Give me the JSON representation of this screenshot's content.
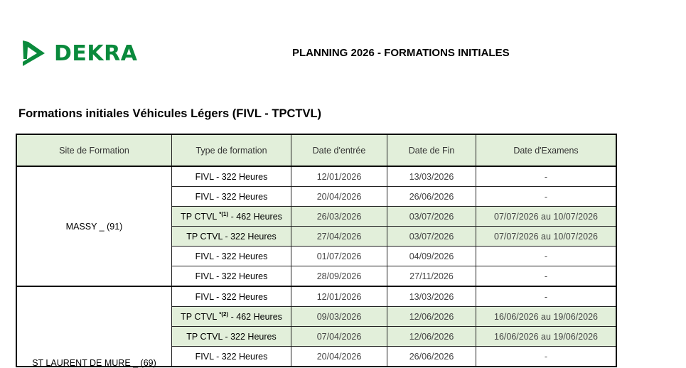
{
  "logo": {
    "text": "DEKRA",
    "color": "#0a8a3c"
  },
  "title": "PLANNING 2026 - FORMATIONS INITIALES",
  "subtitle": "Formations initiales Véhicules Légers  (FIVL - TPCTVL)",
  "table": {
    "headers": [
      "Site de Formation",
      "Type de formation",
      "Date d'entrée",
      "Date de Fin",
      "Date d'Examens"
    ],
    "highlight_color": "#e2efda",
    "groups": [
      {
        "site": "MASSY _ (91)",
        "rows": [
          {
            "type": "FIVL - 322 Heures",
            "sup": "",
            "type_rest": "",
            "start": "12/01/2026",
            "end": "13/03/2026",
            "exam": "-",
            "highlight": false
          },
          {
            "type": "FIVL - 322 Heures",
            "sup": "",
            "type_rest": "",
            "start": "20/04/2026",
            "end": "26/06/2026",
            "exam": "-",
            "highlight": false
          },
          {
            "type": "TP CTVL ",
            "sup": "*(1)",
            "type_rest": " - 462 Heures",
            "start": "26/03/2026",
            "end": "03/07/2026",
            "exam": "07/07/2026 au 10/07/2026",
            "highlight": true
          },
          {
            "type": "TP CTVL - 322 Heures",
            "sup": "",
            "type_rest": "",
            "start": "27/04/2026",
            "end": "03/07/2026",
            "exam": "07/07/2026 au 10/07/2026",
            "highlight": true
          },
          {
            "type": "FIVL - 322 Heures",
            "sup": "",
            "type_rest": "",
            "start": "01/07/2026",
            "end": "04/09/2026",
            "exam": "-",
            "highlight": false
          },
          {
            "type": "FIVL - 322 Heures",
            "sup": "",
            "type_rest": "",
            "start": "28/09/2026",
            "end": "27/11/2026",
            "exam": "-",
            "highlight": false
          }
        ]
      },
      {
        "site": "ST LAURENT DE MURE _ (69)",
        "rows": [
          {
            "type": "FIVL - 322 Heures",
            "sup": "",
            "type_rest": "",
            "start": "12/01/2026",
            "end": "13/03/2026",
            "exam": "-",
            "highlight": false
          },
          {
            "type": "TP CTVL ",
            "sup": "*(2)",
            "type_rest": " - 462 Heures",
            "start": "09/03/2026",
            "end": "12/06/2026",
            "exam": "16/06/2026 au 19/06/2026",
            "highlight": true
          },
          {
            "type": "TP CTVL - 322 Heures",
            "sup": "",
            "type_rest": "",
            "start": "07/04/2026",
            "end": "12/06/2026",
            "exam": "16/06/2026 au 19/06/2026",
            "highlight": true
          },
          {
            "type": "FIVL - 322 Heures",
            "sup": "",
            "type_rest": "",
            "start": "20/04/2026",
            "end": "26/06/2026",
            "exam": "-",
            "highlight": false
          }
        ]
      }
    ]
  }
}
